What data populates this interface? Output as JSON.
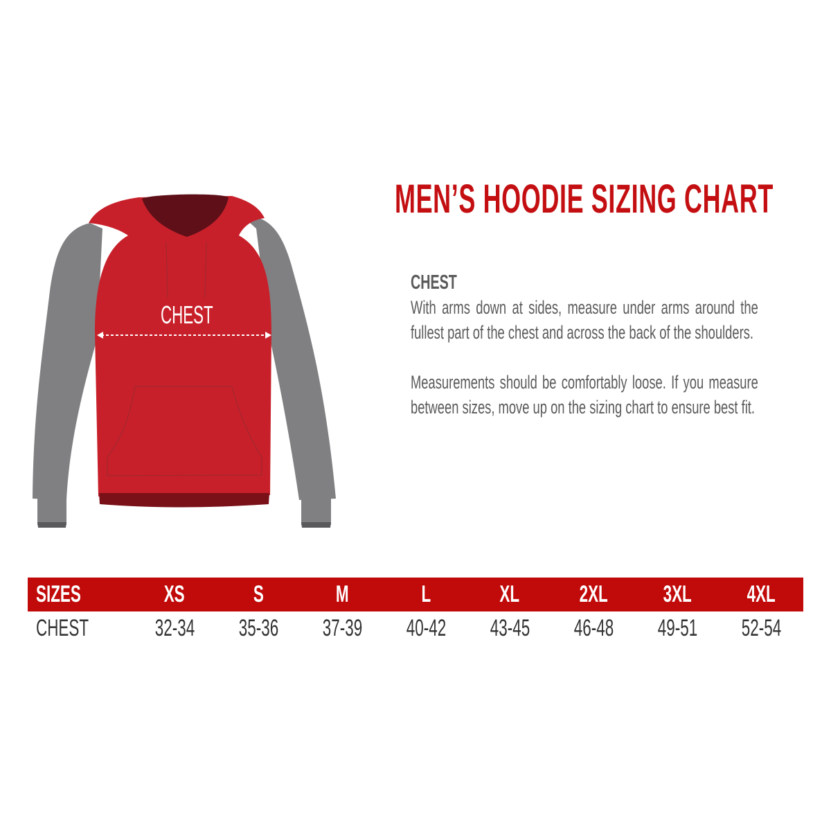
{
  "title": "MEN’S HOODIE SIZING CHART",
  "illustration": {
    "label": "CHEST",
    "colors": {
      "body": "#c8202a",
      "sleeves": "#808083",
      "hood_inner": "#5e0f18",
      "cuffs": "#5a5a5c"
    }
  },
  "description": {
    "heading": "CHEST",
    "paragraph1": "With arms down at sides, measure under arms around the fullest part of the chest and across the back of the shoulders.",
    "paragraph2": "Measurements should be comfortably loose. If you measure between sizes, move up on the sizing chart to ensure best fit."
  },
  "table": {
    "header_color": "#c10a0a",
    "headers": [
      "SIZES",
      "XS",
      "S",
      "M",
      "L",
      "XL",
      "2XL",
      "3XL",
      "4XL"
    ],
    "rows": [
      [
        "CHEST",
        "32-34",
        "35-36",
        "37-39",
        "40-42",
        "43-45",
        "46-48",
        "49-51",
        "52-54"
      ]
    ]
  }
}
